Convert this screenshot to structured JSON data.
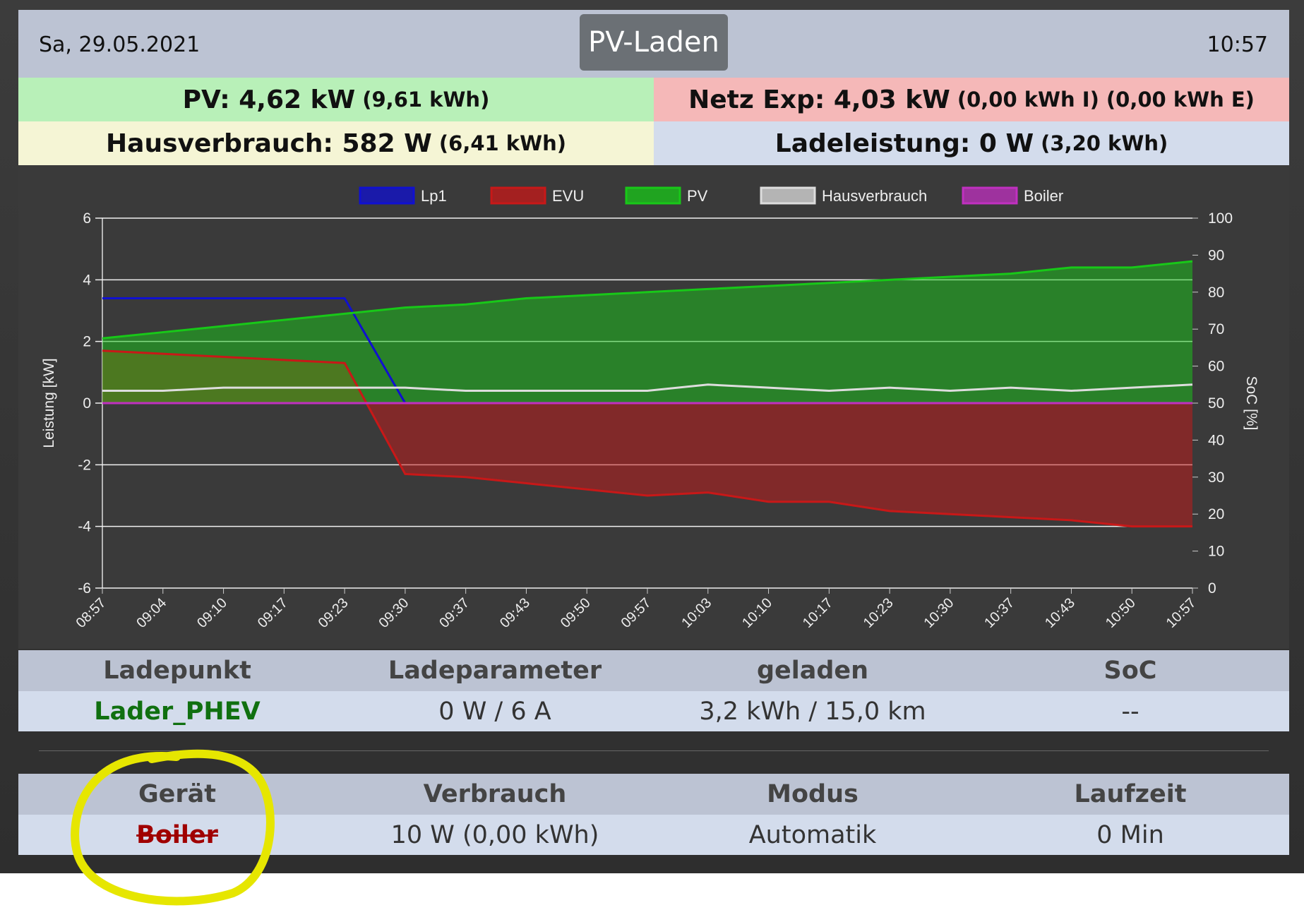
{
  "header": {
    "date": "Sa, 29.05.2021",
    "mode": "PV-Laden",
    "time": "10:57"
  },
  "status": {
    "pv": {
      "main": "PV: 4,62 kW",
      "detail": "(9,61 kWh)"
    },
    "grid": {
      "main": "Netz Exp: 4,03 kW",
      "detail": "(0,00 kWh I) (0,00 kWh E)"
    },
    "house": {
      "main": "Hausverbrauch: 582 W",
      "detail": "(6,41 kWh)"
    },
    "charge": {
      "main": "Ladeleistung: 0 W",
      "detail": "(3,20 kWh)"
    }
  },
  "chart_data": {
    "type": "line",
    "y_label": "Leistung [kW]",
    "y2_label": "SoC [%]",
    "categories": [
      "08:57",
      "09:04",
      "09:10",
      "09:17",
      "09:23",
      "09:30",
      "09:37",
      "09:43",
      "09:50",
      "09:57",
      "10:03",
      "10:10",
      "10:17",
      "10:23",
      "10:30",
      "10:37",
      "10:43",
      "10:50",
      "10:57"
    ],
    "series": [
      {
        "name": "Lp1",
        "color": "#1010d0",
        "fill": false,
        "values": [
          3.4,
          3.4,
          3.4,
          3.4,
          3.4,
          0,
          0,
          0,
          0,
          0,
          0,
          0,
          0,
          0,
          0,
          0,
          0,
          0,
          0
        ]
      },
      {
        "name": "EVU",
        "color": "#c81818",
        "fill": true,
        "values": [
          1.7,
          1.6,
          1.5,
          1.4,
          1.3,
          -2.3,
          -2.4,
          -2.6,
          -2.8,
          -3.0,
          -2.9,
          -3.2,
          -3.2,
          -3.5,
          -3.6,
          -3.7,
          -3.8,
          -4.0,
          -4.0
        ]
      },
      {
        "name": "PV",
        "color": "#18c818",
        "fill": true,
        "values": [
          2.1,
          2.3,
          2.5,
          2.7,
          2.9,
          3.1,
          3.2,
          3.4,
          3.5,
          3.6,
          3.7,
          3.8,
          3.9,
          4.0,
          4.1,
          4.2,
          4.4,
          4.4,
          4.6
        ]
      },
      {
        "name": "Hausverbrauch",
        "color": "#dddddd",
        "fill": false,
        "values": [
          0.4,
          0.4,
          0.5,
          0.5,
          0.5,
          0.5,
          0.4,
          0.4,
          0.4,
          0.4,
          0.6,
          0.5,
          0.4,
          0.5,
          0.4,
          0.5,
          0.4,
          0.5,
          0.6
        ]
      },
      {
        "name": "Boiler",
        "color": "#c030c0",
        "fill": false,
        "values": [
          0,
          0,
          0,
          0,
          0,
          0,
          0,
          0,
          0,
          0,
          0,
          0,
          0,
          0,
          0,
          0,
          0,
          0,
          0
        ]
      }
    ],
    "ylim": [
      -6,
      6
    ],
    "yticks": [
      -6,
      -4,
      -2,
      0,
      2,
      4,
      6
    ],
    "y2lim": [
      0,
      100
    ],
    "y2ticks": [
      0,
      10,
      20,
      30,
      40,
      50,
      60,
      70,
      80,
      90,
      100
    ],
    "grid": true
  },
  "charge_table": {
    "columns": [
      "Ladepunkt",
      "Ladeparameter",
      "geladen",
      "SoC"
    ],
    "rows": [
      [
        "Lader_PHEV",
        "0 W / 6 A",
        "3,2 kWh / 15,0 km",
        "--"
      ]
    ]
  },
  "device_table": {
    "columns": [
      "Gerät",
      "Verbrauch",
      "Modus",
      "Laufzeit"
    ],
    "rows": [
      [
        "Boiler",
        "10 W (0,00 kWh)",
        "Automatik",
        "0 Min"
      ]
    ]
  }
}
